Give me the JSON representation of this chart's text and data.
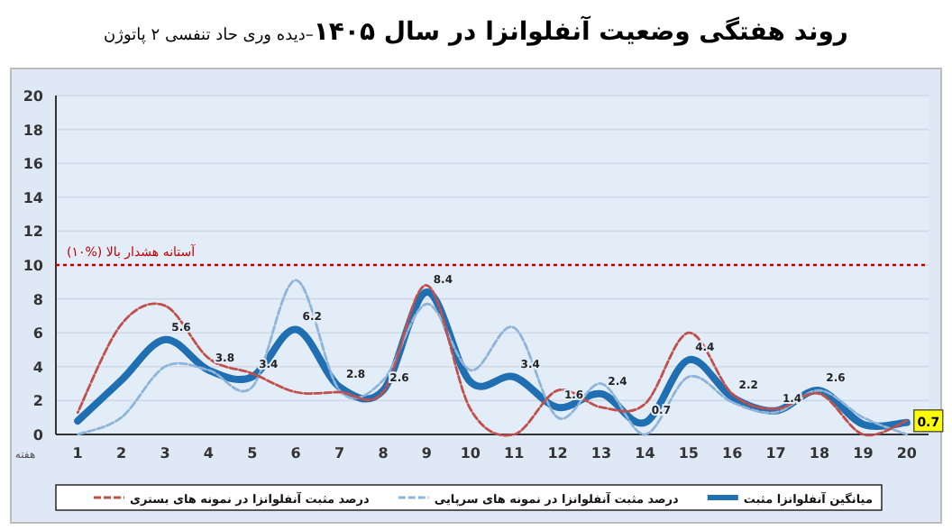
{
  "chart_data": {
    "type": "line",
    "title": "روند هفتگی وضعیت آنفلوانزا در سال ۱۴۰۵",
    "subtitle": "–دیده وری حاد تنفسی ۲ پاتوژن",
    "xlabel": "هفته",
    "categories": [
      "1",
      "2",
      "3",
      "4",
      "5",
      "6",
      "7",
      "8",
      "9",
      "10",
      "11",
      "12",
      "13",
      "14",
      "15",
      "16",
      "17",
      "18",
      "19",
      "20"
    ],
    "series": [
      {
        "name": "میانگین آنفلوانزا مثبت",
        "color": "#1f6fb2",
        "line_style": "solid",
        "values": [
          0.8,
          3.2,
          5.6,
          3.8,
          3.4,
          6.2,
          2.8,
          2.6,
          8.4,
          3.1,
          3.4,
          1.6,
          2.4,
          0.7,
          4.4,
          2.2,
          1.4,
          2.6,
          0.6,
          0.7
        ],
        "value_labels": [
          null,
          null,
          "5.6",
          "3.8",
          "3.4",
          "6.2",
          "2.8",
          "2.6",
          "8.4",
          null,
          "3.4",
          "1.6",
          "2.4",
          "0.7",
          "4.4",
          "2.2",
          "1.4",
          "2.6",
          null,
          "0.7"
        ]
      },
      {
        "name": "درصد مثبت آنفلوانزا در نمونه های سرپایی",
        "color": "#8fb4d9",
        "line_style": "dashed",
        "values": [
          0,
          1.0,
          4.0,
          3.8,
          2.8,
          9.1,
          2.6,
          3.2,
          7.7,
          3.8,
          6.3,
          1.0,
          3.0,
          0,
          3.4,
          1.9,
          1.3,
          2.6,
          1.0,
          0
        ]
      },
      {
        "name": "درصد مثبت آنفلوانزا در نمونه های بستری",
        "color": "#c0504d",
        "line_style": "dashed",
        "values": [
          1.3,
          6.5,
          7.6,
          4.5,
          3.6,
          2.5,
          2.5,
          2.5,
          8.8,
          1.5,
          0,
          2.6,
          1.6,
          1.8,
          6.0,
          2.4,
          1.5,
          2.4,
          0,
          0.8
        ]
      }
    ],
    "ylim": [
      0,
      20
    ],
    "yticks": [
      0,
      2,
      4,
      6,
      8,
      10,
      12,
      14,
      16,
      18,
      20
    ],
    "grid": "y",
    "legend": "bottom",
    "ref_lines": [
      {
        "axis": "y",
        "value": 10,
        "label": "آستانه هشدار بالا (%۱۰)",
        "color": "#c00000",
        "line_style": "dotted"
      }
    ]
  }
}
